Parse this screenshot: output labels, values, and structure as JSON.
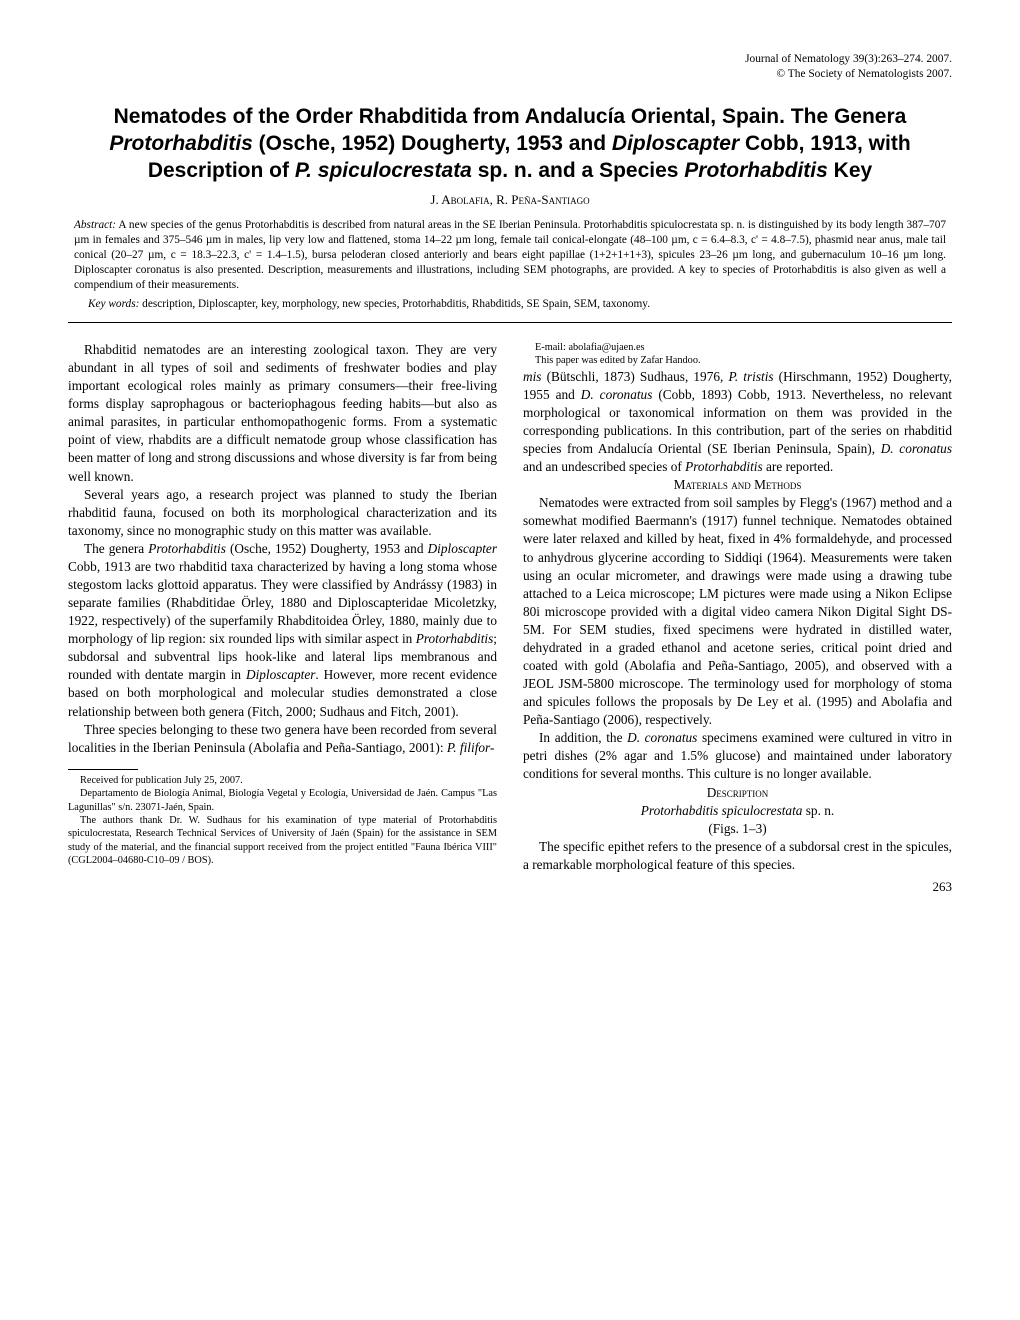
{
  "journal": {
    "line1": "Journal of Nematology 39(3):263–274. 2007.",
    "line2": "© The Society of Nematologists 2007."
  },
  "title": {
    "pre1": "Nematodes of the Order Rhabditida from Andalucía Oriental, Spain. The Genera ",
    "genus1": "Protorhabditis",
    "mid1": " (Osche, 1952) Dougherty, 1953 and ",
    "genus2": "Diploscapter",
    "mid2": " Cobb, 1913, with Description of ",
    "genus3": "P. spiculocrestata",
    "mid3": " sp. n. and a Species ",
    "genus4": "Protorhabditis",
    "post": " Key"
  },
  "authors": "J. Abolafia, R. Peña-Santiago",
  "abstract": {
    "head": "Abstract:",
    "body": " A new species of the genus Protorhabditis is described from natural areas in the SE Iberian Peninsula. Protorhabditis spiculocrestata sp. n. is distinguished by its body length 387–707 µm in females and 375–546 µm in males, lip very low and flattened, stoma 14–22 µm long, female tail conical-elongate (48–100 µm, c = 6.4–8.3, c' = 4.8–7.5), phasmid near anus, male tail conical (20–27 µm, c = 18.3–22.3, c' = 1.4–1.5), bursa peloderan closed anteriorly and bears eight papillae (1+2+1+1+3), spicules 23–26 µm long, and gubernaculum 10–16 µm long. Diploscapter coronatus is also presented. Description, measurements and illustrations, including SEM photographs, are provided. A key to species of Protorhabditis is also given as well a compendium of their measurements."
  },
  "keywords": {
    "head": "Key words:",
    "body": " description, Diploscapter, key, morphology, new species, Protorhabditis, Rhabditids, SE Spain, SEM, taxonomy."
  },
  "body": {
    "p1": "Rhabditid nematodes are an interesting zoological taxon. They are very abundant in all types of soil and sediments of freshwater bodies and play important ecological roles mainly as primary consumers—their free-living forms display saprophagous or bacteriophagous feeding habits—but also as animal parasites, in particular enthomopathogenic forms. From a systematic point of view, rhabdits are a difficult nematode group whose classification has been matter of long and strong discussions and whose diversity is far from being well known.",
    "p2": "Several years ago, a research project was planned to study the Iberian rhabditid fauna, focused on both its morphological characterization and its taxonomy, since no monographic study on this matter was available.",
    "p3a": "The genera ",
    "p3b": "Protorhabditis",
    "p3c": " (Osche, 1952) Dougherty, 1953 and ",
    "p3d": "Diploscapter",
    "p3e": " Cobb, 1913 are two rhabditid taxa characterized by having a long stoma whose stegostom lacks glottoid apparatus. They were classified by Andrássy (1983) in separate families (Rhabditidae Örley, 1880 and Diploscapteridae Micoletzky, 1922, respectively) of the superfamily Rhabditoidea Örley, 1880, mainly due to morphology of lip region: six rounded lips with similar aspect in ",
    "p3f": "Protorhabditis",
    "p3g": "; subdorsal and subventral lips hook-like and lateral lips membranous and rounded with dentate margin in ",
    "p3h": "Diploscapter",
    "p3i": ". However, more recent evidence based on both morphological and molecular studies demonstrated a close relationship between both genera (Fitch, 2000; Sudhaus and Fitch, 2001).",
    "p4a": "Three species belonging to these two genera have been recorded from several localities in the Iberian Peninsula (Abolafia and Peña-Santiago, 2001): ",
    "p4b": "P. filifor-",
    "p5a": "mis",
    "p5b": " (Bütschli, 1873) Sudhaus, 1976, ",
    "p5c": "P. tristis",
    "p5d": " (Hirschmann, 1952) Dougherty, 1955 and ",
    "p5e": "D. coronatus",
    "p5f": " (Cobb, 1893) Cobb, 1913. Nevertheless, no relevant morphological or taxonomical information on them was provided in the corresponding publications. In this contribution, part of the series on rhabditid species from Andalucía Oriental (SE Iberian Peninsula, Spain), ",
    "p5g": "D. coronatus",
    "p5h": " and an undescribed species of ",
    "p5i": "Protorhabditis",
    "p5j": " are reported.",
    "mm_head": "Materials and Methods",
    "p6": "Nematodes were extracted from soil samples by Flegg's (1967) method and a somewhat modified Baermann's (1917) funnel technique. Nematodes obtained were later relaxed and killed by heat, fixed in 4% formaldehyde, and processed to anhydrous glycerine according to Siddiqi (1964). Measurements were taken using an ocular micrometer, and drawings were made using a drawing tube attached to a Leica microscope; LM pictures were made using a Nikon Eclipse 80i microscope provided with a digital video camera Nikon Digital Sight DS-5M. For SEM studies, fixed specimens were hydrated in distilled water, dehydrated in a graded ethanol and acetone series, critical point dried and coated with gold (Abolafia and Peña-Santiago, 2005), and observed with a JEOL JSM-5800 microscope. The terminology used for morphology of stoma and spicules follows the proposals by De Ley et al. (1995) and Abolafia and Peña-Santiago (2006), respectively.",
    "p7a": "In addition, the ",
    "p7b": "D. coronatus",
    "p7c": " specimens examined were cultured in vitro in petri dishes (2% agar and 1.5% glucose) and maintained under laboratory conditions for several months. This culture is no longer available.",
    "desc_head": "Description",
    "species_a": "Protorhabditis spiculocrestata",
    "species_b": " sp. n.",
    "figs": "(Figs. 1–3)",
    "p8": "The specific epithet refers to the presence of a subdorsal crest in the spicules, a remarkable morphological feature of this species."
  },
  "footnotes": {
    "f1": "Received for publication July 25, 2007.",
    "f2": "Departamento de Biología Animal, Biología Vegetal y Ecología, Universidad de Jaén. Campus \"Las Lagunillas\" s/n. 23071-Jaén, Spain.",
    "f3": "The authors thank Dr. W. Sudhaus for his examination of type material of Protorhabditis spiculocrestata, Research Technical Services of University of Jaén (Spain) for the assistance in SEM study of the material, and the financial support received from the project entitled \"Fauna Ibérica VIII\" (CGL2004–04680-C10–09 / BOS).",
    "f4": "E-mail: abolafia@ujaen.es",
    "f5": "This paper was edited by Zafar Handoo."
  },
  "pagenum": "263"
}
